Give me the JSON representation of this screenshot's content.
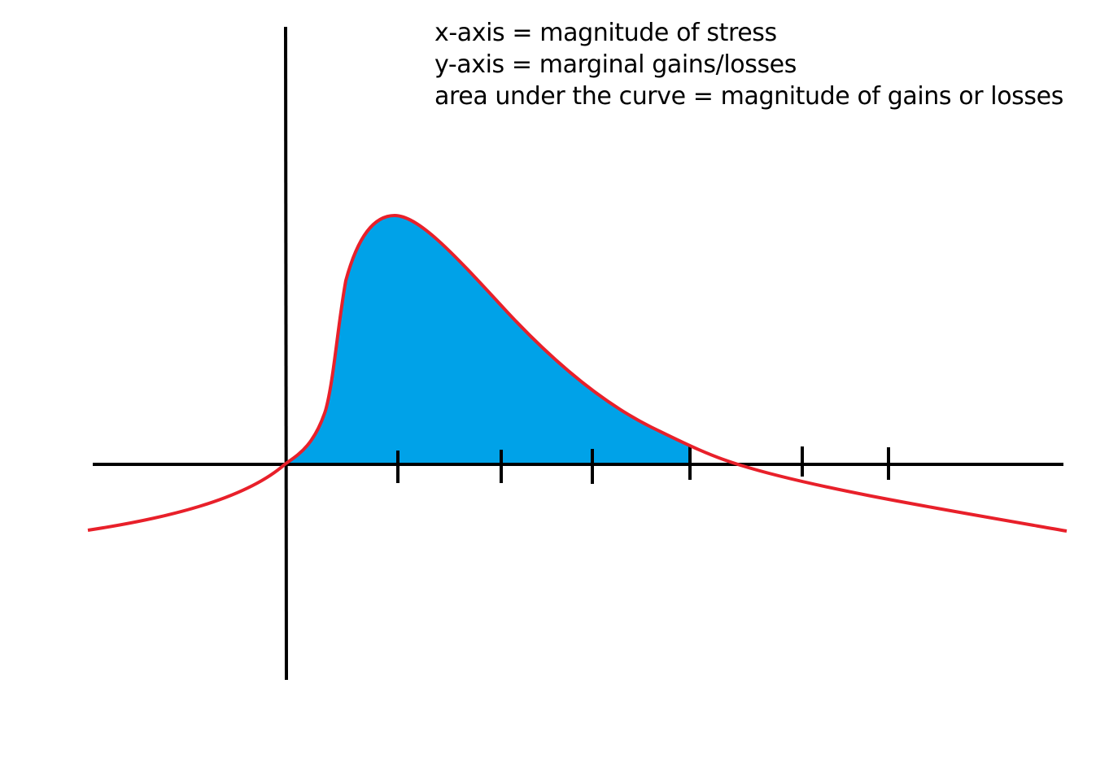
{
  "notes": [
    "x-axis = magnitude of stress",
    "y-axis = marginal gains/losses",
    "area under the curve = magnitude of gains or losses"
  ],
  "colors": {
    "curve": "#e8202a",
    "fill": "#00a2e8",
    "axes": "#000000"
  },
  "tick_count": 6
}
